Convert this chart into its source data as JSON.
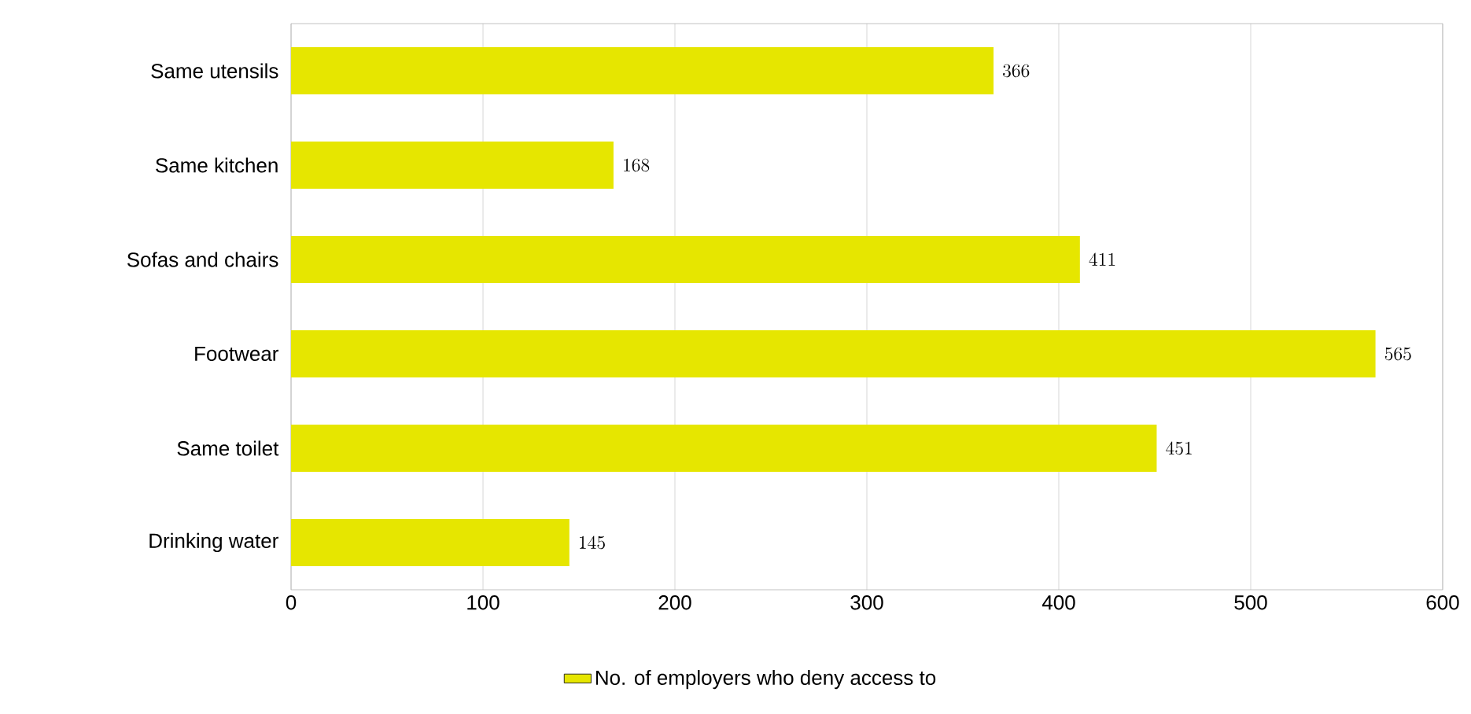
{
  "chart_data": {
    "type": "bar",
    "orientation": "horizontal",
    "categories": [
      "Same utensils",
      "Same kitchen",
      "Sofas and chairs",
      "Footwear",
      "Same toilet",
      "Drinking water"
    ],
    "series": [
      {
        "name": "No. of employers who deny access to",
        "color": "#e6e600",
        "values": [
          366,
          168,
          411,
          565,
          451,
          145
        ]
      }
    ],
    "xlim": [
      0,
      600
    ],
    "xticks": [
      0,
      100,
      200,
      300,
      400,
      500,
      600
    ],
    "grid": "x",
    "legend": "bottom",
    "data_labels": true
  }
}
